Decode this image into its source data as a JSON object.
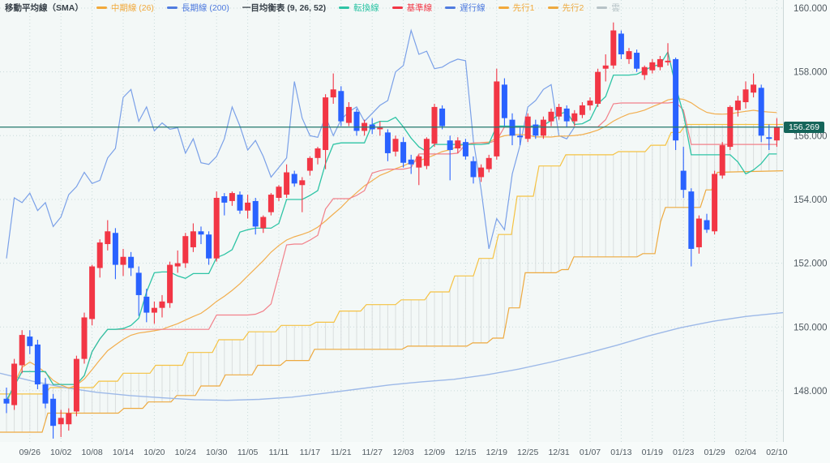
{
  "legend": {
    "items": [
      {
        "label": "移動平均線（SMA）",
        "kind": "header"
      },
      {
        "label": "中期線 (26)",
        "kind": "item",
        "color": "#f2a93b"
      },
      {
        "label": "長期線 (200)",
        "kind": "item",
        "color": "#4f7bdf"
      },
      {
        "label": "一目均衡表 (9, 26, 52)",
        "kind": "header"
      },
      {
        "label": "転換線",
        "kind": "item",
        "color": "#2ec4a5"
      },
      {
        "label": "基準線",
        "kind": "item",
        "color": "#f23645"
      },
      {
        "label": "遅行線",
        "kind": "item",
        "color": "#4f7bdf"
      },
      {
        "label": "先行1",
        "kind": "item",
        "color": "#f2a93b"
      },
      {
        "label": "先行2",
        "kind": "item",
        "color": "#eda93f"
      },
      {
        "label": "雲",
        "kind": "item",
        "color": "#b7c3c7"
      }
    ]
  },
  "y_axis": {
    "labels": [
      "160.000",
      "158.000",
      "156.000",
      "154.000",
      "152.000",
      "150.000",
      "148.000"
    ],
    "grid_prices": [
      160,
      158,
      156,
      154,
      152,
      150,
      148
    ],
    "price_badge": "156.269"
  },
  "x_axis": {
    "labels": [
      "09/26",
      "10/02",
      "10/08",
      "10/14",
      "10/20",
      "10/24",
      "10/30",
      "11/05",
      "11/11",
      "11/17",
      "11/21",
      "11/27",
      "12/03",
      "12/09",
      "12/15",
      "12/19",
      "12/25",
      "12/31",
      "01/07",
      "01/13",
      "01/19",
      "01/23",
      "01/29",
      "02/04",
      "02/10"
    ]
  },
  "current_price": 156.269,
  "colors": {
    "bull": "#f23645",
    "bear": "#2962ff",
    "tenkan": "#2ec4a5",
    "kijun": "#f2808a",
    "chikou": "#7aa0e8",
    "sma26": "#f2ae4e",
    "sma200": "#9db9e8",
    "senkou1": "#f5c242",
    "senkou2": "#eda93f",
    "cloud_hatch": "#d9dede",
    "price_line": "#23796c",
    "badge_bg": "#15655a",
    "badge_text": "#ffffff",
    "grid": "#c9dada",
    "axis_text": "#505a61",
    "bg": "#f3f8f7",
    "axis_bg": "#f7fbfa",
    "axis_line": "#ccd8d8",
    "header_text": "#39424a"
  },
  "chart_data": {
    "type": "candlestick",
    "title": "移動平均線（SMA）一目均衡表 (9, 26, 52)",
    "ylim": [
      146.2,
      160.35
    ],
    "grid": true,
    "label_every": 4,
    "first_label_index": 3,
    "indicator_periods": {
      "sma_mid": 26,
      "sma_long": 200,
      "tenkan": 9,
      "kijun": 26,
      "senkou_b": 52,
      "shift": 26
    },
    "candles_ohlc": [
      [
        147.75,
        148.1,
        147.3,
        147.6
      ],
      [
        147.55,
        149.0,
        147.4,
        148.85
      ],
      [
        148.8,
        149.9,
        148.55,
        149.75
      ],
      [
        149.7,
        149.9,
        149.15,
        149.4
      ],
      [
        149.45,
        149.6,
        148.05,
        148.2
      ],
      [
        148.2,
        148.4,
        147.45,
        147.6
      ],
      [
        147.75,
        147.9,
        146.5,
        146.9
      ],
      [
        146.95,
        147.4,
        146.55,
        147.15
      ],
      [
        146.95,
        147.45,
        146.75,
        147.3
      ],
      [
        147.35,
        149.1,
        147.2,
        149.0
      ],
      [
        149.0,
        150.45,
        148.85,
        150.3
      ],
      [
        150.25,
        151.95,
        150.05,
        151.9
      ],
      [
        151.85,
        152.75,
        151.55,
        152.65
      ],
      [
        152.6,
        153.35,
        152.4,
        153.0
      ],
      [
        152.95,
        153.1,
        151.5,
        151.95
      ],
      [
        151.95,
        152.45,
        151.6,
        152.2
      ],
      [
        152.2,
        152.35,
        151.6,
        151.85
      ],
      [
        151.7,
        151.9,
        150.35,
        151.0
      ],
      [
        150.95,
        151.2,
        150.15,
        150.45
      ],
      [
        150.45,
        150.8,
        150.1,
        150.6
      ],
      [
        150.6,
        151.0,
        150.3,
        150.8
      ],
      [
        150.75,
        152.05,
        150.6,
        151.95
      ],
      [
        151.9,
        152.4,
        151.7,
        152.0
      ],
      [
        152.0,
        152.95,
        151.85,
        152.85
      ],
      [
        152.5,
        153.25,
        152.35,
        153.0
      ],
      [
        153.0,
        153.15,
        152.6,
        152.9
      ],
      [
        152.9,
        153.0,
        151.95,
        152.15
      ],
      [
        152.15,
        154.25,
        152.05,
        154.05
      ],
      [
        154.1,
        154.2,
        153.5,
        153.9
      ],
      [
        153.95,
        154.25,
        153.8,
        154.2
      ],
      [
        154.15,
        154.25,
        153.55,
        153.65
      ],
      [
        153.65,
        154.15,
        153.4,
        153.9
      ],
      [
        153.95,
        154.05,
        152.9,
        153.15
      ],
      [
        153.1,
        153.5,
        152.95,
        153.45
      ],
      [
        153.6,
        154.2,
        153.5,
        154.15
      ],
      [
        154.05,
        154.45,
        153.95,
        154.4
      ],
      [
        154.15,
        155.1,
        154.05,
        154.85
      ],
      [
        154.8,
        154.9,
        154.4,
        154.5
      ],
      [
        154.45,
        154.7,
        153.6,
        154.6
      ],
      [
        154.9,
        155.35,
        154.75,
        155.3
      ],
      [
        155.3,
        155.65,
        155.1,
        155.6
      ],
      [
        155.55,
        157.3,
        154.95,
        157.2
      ],
      [
        157.2,
        157.95,
        157.0,
        157.45
      ],
      [
        157.4,
        157.55,
        156.3,
        156.45
      ],
      [
        156.4,
        157.05,
        156.3,
        156.9
      ],
      [
        156.75,
        156.85,
        156.0,
        156.15
      ],
      [
        156.15,
        156.5,
        156.0,
        156.4
      ],
      [
        156.35,
        156.55,
        156.05,
        156.2
      ],
      [
        156.2,
        156.45,
        156.0,
        156.25
      ],
      [
        156.1,
        156.2,
        155.2,
        155.45
      ],
      [
        155.5,
        156.0,
        155.35,
        155.9
      ],
      [
        155.8,
        155.95,
        155.0,
        155.15
      ],
      [
        155.25,
        155.4,
        154.8,
        155.1
      ],
      [
        155.0,
        155.4,
        154.45,
        155.35
      ],
      [
        155.05,
        155.95,
        154.95,
        155.9
      ],
      [
        155.75,
        157.0,
        155.65,
        156.9
      ],
      [
        156.85,
        156.95,
        156.2,
        156.3
      ],
      [
        155.85,
        156.0,
        154.6,
        155.55
      ],
      [
        155.6,
        155.95,
        155.45,
        155.85
      ],
      [
        155.8,
        155.9,
        155.25,
        155.35
      ],
      [
        155.2,
        155.35,
        154.5,
        154.7
      ],
      [
        154.7,
        155.1,
        154.55,
        155.0
      ],
      [
        154.95,
        155.4,
        154.85,
        155.3
      ],
      [
        155.35,
        158.1,
        155.25,
        157.7
      ],
      [
        157.6,
        157.8,
        156.3,
        156.55
      ],
      [
        156.5,
        156.7,
        155.7,
        156.0
      ],
      [
        156.0,
        156.25,
        155.7,
        155.95
      ],
      [
        155.9,
        156.7,
        155.8,
        156.6
      ],
      [
        156.35,
        156.5,
        155.9,
        156.0
      ],
      [
        156.0,
        156.6,
        155.9,
        156.5
      ],
      [
        156.45,
        156.85,
        156.3,
        156.75
      ],
      [
        156.6,
        157.0,
        156.5,
        156.9
      ],
      [
        156.85,
        156.95,
        156.25,
        156.45
      ],
      [
        156.45,
        156.8,
        156.3,
        156.7
      ],
      [
        156.65,
        157.05,
        156.55,
        156.95
      ],
      [
        156.95,
        157.2,
        156.8,
        157.1
      ],
      [
        157.0,
        158.1,
        156.9,
        158.0
      ],
      [
        158.1,
        158.55,
        157.7,
        158.2
      ],
      [
        158.2,
        159.55,
        158.1,
        159.3
      ],
      [
        159.2,
        159.3,
        158.4,
        158.55
      ],
      [
        158.4,
        158.75,
        158.25,
        158.65
      ],
      [
        158.6,
        158.7,
        158.0,
        158.1
      ],
      [
        157.9,
        158.2,
        157.75,
        158.15
      ],
      [
        158.05,
        158.4,
        157.95,
        158.3
      ],
      [
        158.15,
        158.5,
        158.05,
        158.4
      ],
      [
        158.3,
        158.9,
        158.2,
        158.35
      ],
      [
        158.4,
        158.45,
        155.55,
        155.85
      ],
      [
        154.9,
        155.65,
        154.05,
        154.3
      ],
      [
        154.25,
        154.35,
        151.9,
        152.45
      ],
      [
        152.5,
        153.5,
        152.3,
        153.4
      ],
      [
        153.35,
        153.55,
        152.95,
        153.05
      ],
      [
        153.0,
        154.9,
        152.9,
        154.8
      ],
      [
        154.75,
        155.8,
        154.65,
        155.7
      ],
      [
        155.65,
        156.95,
        155.55,
        156.9
      ],
      [
        156.8,
        157.25,
        156.6,
        157.1
      ],
      [
        157.05,
        157.7,
        156.85,
        157.45
      ],
      [
        157.35,
        157.95,
        157.2,
        157.6
      ],
      [
        157.5,
        157.6,
        155.8,
        156.0
      ],
      [
        155.95,
        156.35,
        155.55,
        155.9
      ],
      [
        155.85,
        156.55,
        155.65,
        156.269
      ]
    ],
    "sma200_anchors": [
      [
        0,
        148.55
      ],
      [
        40,
        148.3
      ],
      [
        80,
        148.1
      ],
      [
        120,
        147.95
      ],
      [
        160,
        147.85
      ],
      [
        200,
        147.78
      ],
      [
        240,
        147.72
      ],
      [
        280,
        147.7
      ],
      [
        320,
        147.73
      ],
      [
        360,
        147.8
      ],
      [
        400,
        147.92
      ],
      [
        440,
        148.05
      ],
      [
        480,
        148.18
      ],
      [
        520,
        148.28
      ],
      [
        560,
        148.36
      ],
      [
        600,
        148.5
      ],
      [
        640,
        148.68
      ],
      [
        680,
        148.9
      ],
      [
        720,
        149.15
      ],
      [
        760,
        149.42
      ],
      [
        800,
        149.72
      ],
      [
        840,
        149.98
      ],
      [
        880,
        150.18
      ],
      [
        920,
        150.33
      ],
      [
        966,
        150.45
      ]
    ],
    "senkou_a_anchors": [
      [
        0,
        147.9
      ],
      [
        55,
        147.9
      ],
      [
        62,
        148.1
      ],
      [
        115,
        148.1
      ],
      [
        122,
        148.3
      ],
      [
        145,
        148.3
      ],
      [
        152,
        148.55
      ],
      [
        185,
        148.55
      ],
      [
        192,
        148.8
      ],
      [
        225,
        148.8
      ],
      [
        232,
        149.2
      ],
      [
        262,
        149.2
      ],
      [
        270,
        149.6
      ],
      [
        300,
        149.6
      ],
      [
        307,
        149.85
      ],
      [
        340,
        149.85
      ],
      [
        347,
        150.05
      ],
      [
        383,
        150.05
      ],
      [
        390,
        150.15
      ],
      [
        412,
        150.15
      ],
      [
        419,
        150.5
      ],
      [
        445,
        150.5
      ],
      [
        452,
        150.7
      ],
      [
        488,
        150.7
      ],
      [
        495,
        150.85
      ],
      [
        524,
        150.85
      ],
      [
        531,
        151.1
      ],
      [
        554,
        151.1
      ],
      [
        561,
        151.6
      ],
      [
        584,
        151.6
      ],
      [
        591,
        152.15
      ],
      [
        608,
        152.15
      ],
      [
        615,
        152.9
      ],
      [
        631,
        152.9
      ],
      [
        638,
        154.1
      ],
      [
        658,
        154.1
      ],
      [
        665,
        155.05
      ],
      [
        691,
        155.05
      ],
      [
        698,
        155.4
      ],
      [
        756,
        155.4
      ],
      [
        763,
        155.5
      ],
      [
        796,
        155.5
      ],
      [
        803,
        155.7
      ],
      [
        821,
        155.7
      ],
      [
        828,
        156.1
      ],
      [
        839,
        156.1
      ],
      [
        846,
        156.35
      ],
      [
        966,
        156.35
      ]
    ],
    "senkou_b_anchors": [
      [
        0,
        146.7
      ],
      [
        52,
        146.7
      ],
      [
        59,
        147.3
      ],
      [
        146,
        147.3
      ],
      [
        153,
        147.45
      ],
      [
        176,
        147.45
      ],
      [
        183,
        147.65
      ],
      [
        211,
        147.65
      ],
      [
        218,
        147.85
      ],
      [
        241,
        147.85
      ],
      [
        248,
        148.15
      ],
      [
        271,
        148.15
      ],
      [
        278,
        148.5
      ],
      [
        311,
        148.5
      ],
      [
        318,
        148.8
      ],
      [
        346,
        148.8
      ],
      [
        353,
        148.95
      ],
      [
        381,
        148.95
      ],
      [
        388,
        149.3
      ],
      [
        496,
        149.3
      ],
      [
        503,
        149.4
      ],
      [
        576,
        149.4
      ],
      [
        583,
        149.5
      ],
      [
        601,
        149.5
      ],
      [
        608,
        149.65
      ],
      [
        621,
        149.65
      ],
      [
        628,
        150.6
      ],
      [
        641,
        150.6
      ],
      [
        648,
        151.7
      ],
      [
        686,
        151.7
      ],
      [
        693,
        151.8
      ],
      [
        701,
        151.8
      ],
      [
        708,
        152.2
      ],
      [
        786,
        152.2
      ],
      [
        793,
        152.3
      ],
      [
        808,
        152.3
      ],
      [
        815,
        153.3
      ],
      [
        821,
        153.75
      ],
      [
        864,
        153.75
      ],
      [
        871,
        154.3
      ],
      [
        878,
        154.3
      ],
      [
        885,
        154.85
      ],
      [
        966,
        154.9
      ]
    ]
  }
}
